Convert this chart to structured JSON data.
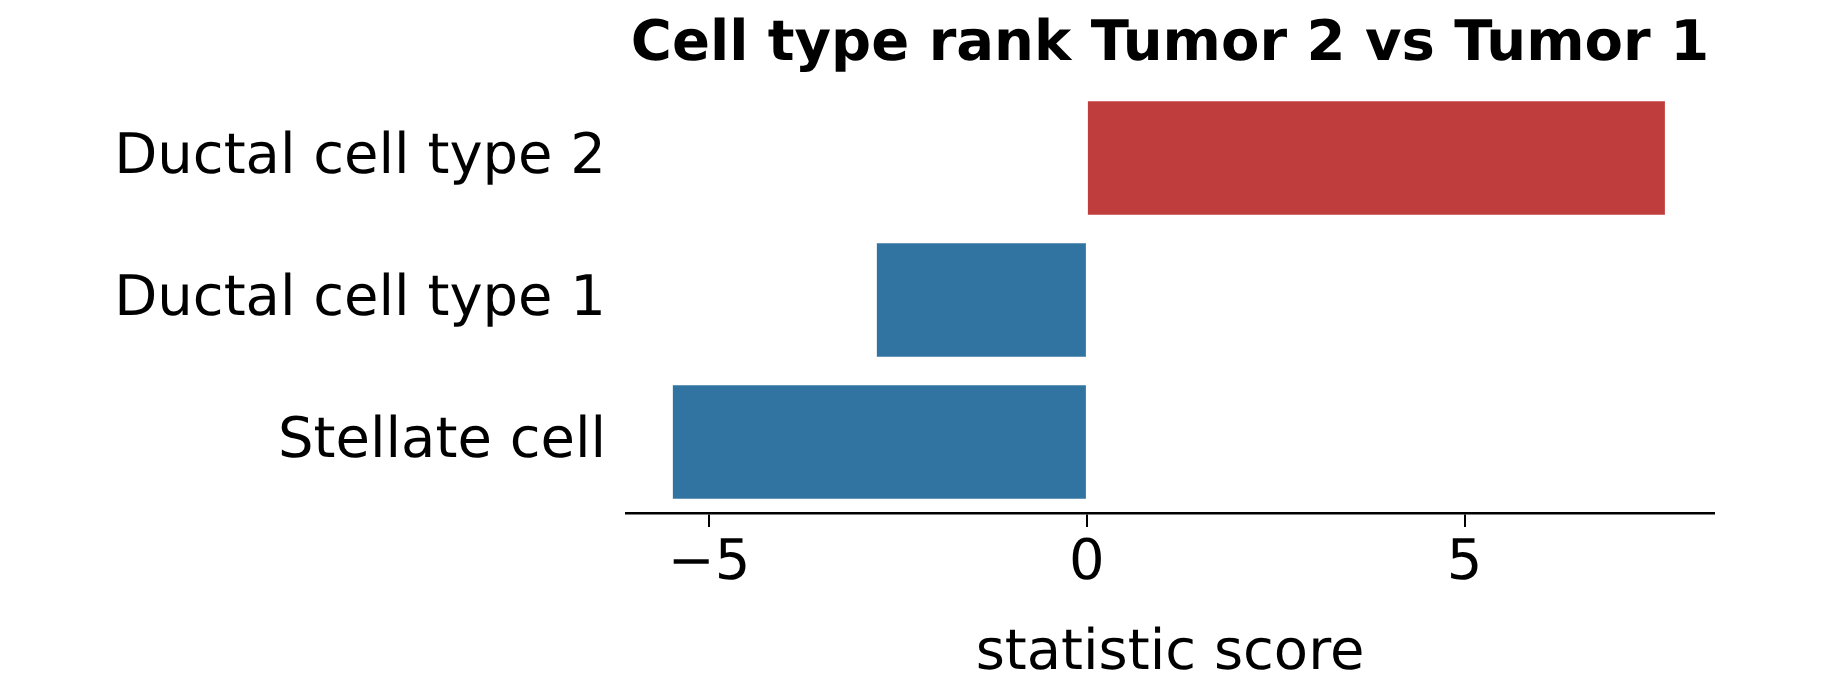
{
  "chart_data": {
    "type": "bar",
    "orientation": "horizontal",
    "title": "Cell type rank Tumor 2 vs Tumor 1",
    "xlabel": "statistic score",
    "categories": [
      "Ductal cell type 2",
      "Ductal cell type 1",
      "Stellate cell"
    ],
    "values": [
      7.65,
      -2.78,
      -5.48
    ],
    "colors": [
      "#c03d3e",
      "#3274a1",
      "#3274a1"
    ],
    "xlim": [
      -6.1,
      8.3
    ],
    "xticks": [
      {
        "value": -5,
        "label": "−5"
      },
      0,
      5
    ],
    "grid": false,
    "legend": false
  }
}
